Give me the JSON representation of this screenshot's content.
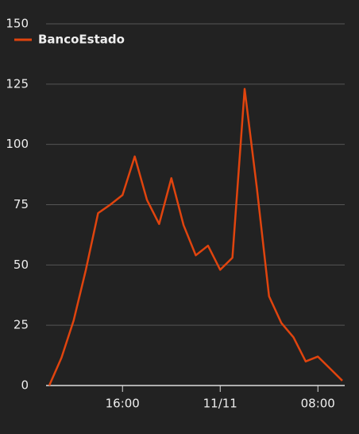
{
  "chart_data": {
    "type": "line",
    "categories": [
      null,
      null,
      null,
      null,
      null,
      null,
      "16:00",
      null,
      null,
      null,
      null,
      null,
      null,
      null,
      "11/11",
      null,
      null,
      null,
      null,
      null,
      null,
      null,
      "08:00",
      null,
      null
    ],
    "series": [
      {
        "name": "BancoEstado",
        "color": "#e0440e",
        "values": [
          0,
          11.5,
          27,
          48,
          71.5,
          75,
          79,
          95,
          77,
          67,
          86,
          66.5,
          54,
          58,
          48,
          53,
          123,
          82,
          37,
          26,
          20,
          10,
          12,
          7,
          2
        ]
      }
    ],
    "ylim": [
      0,
      150
    ],
    "yticks": [
      0,
      25,
      50,
      75,
      100,
      125,
      150
    ],
    "grid": true,
    "legend": "top-left"
  }
}
